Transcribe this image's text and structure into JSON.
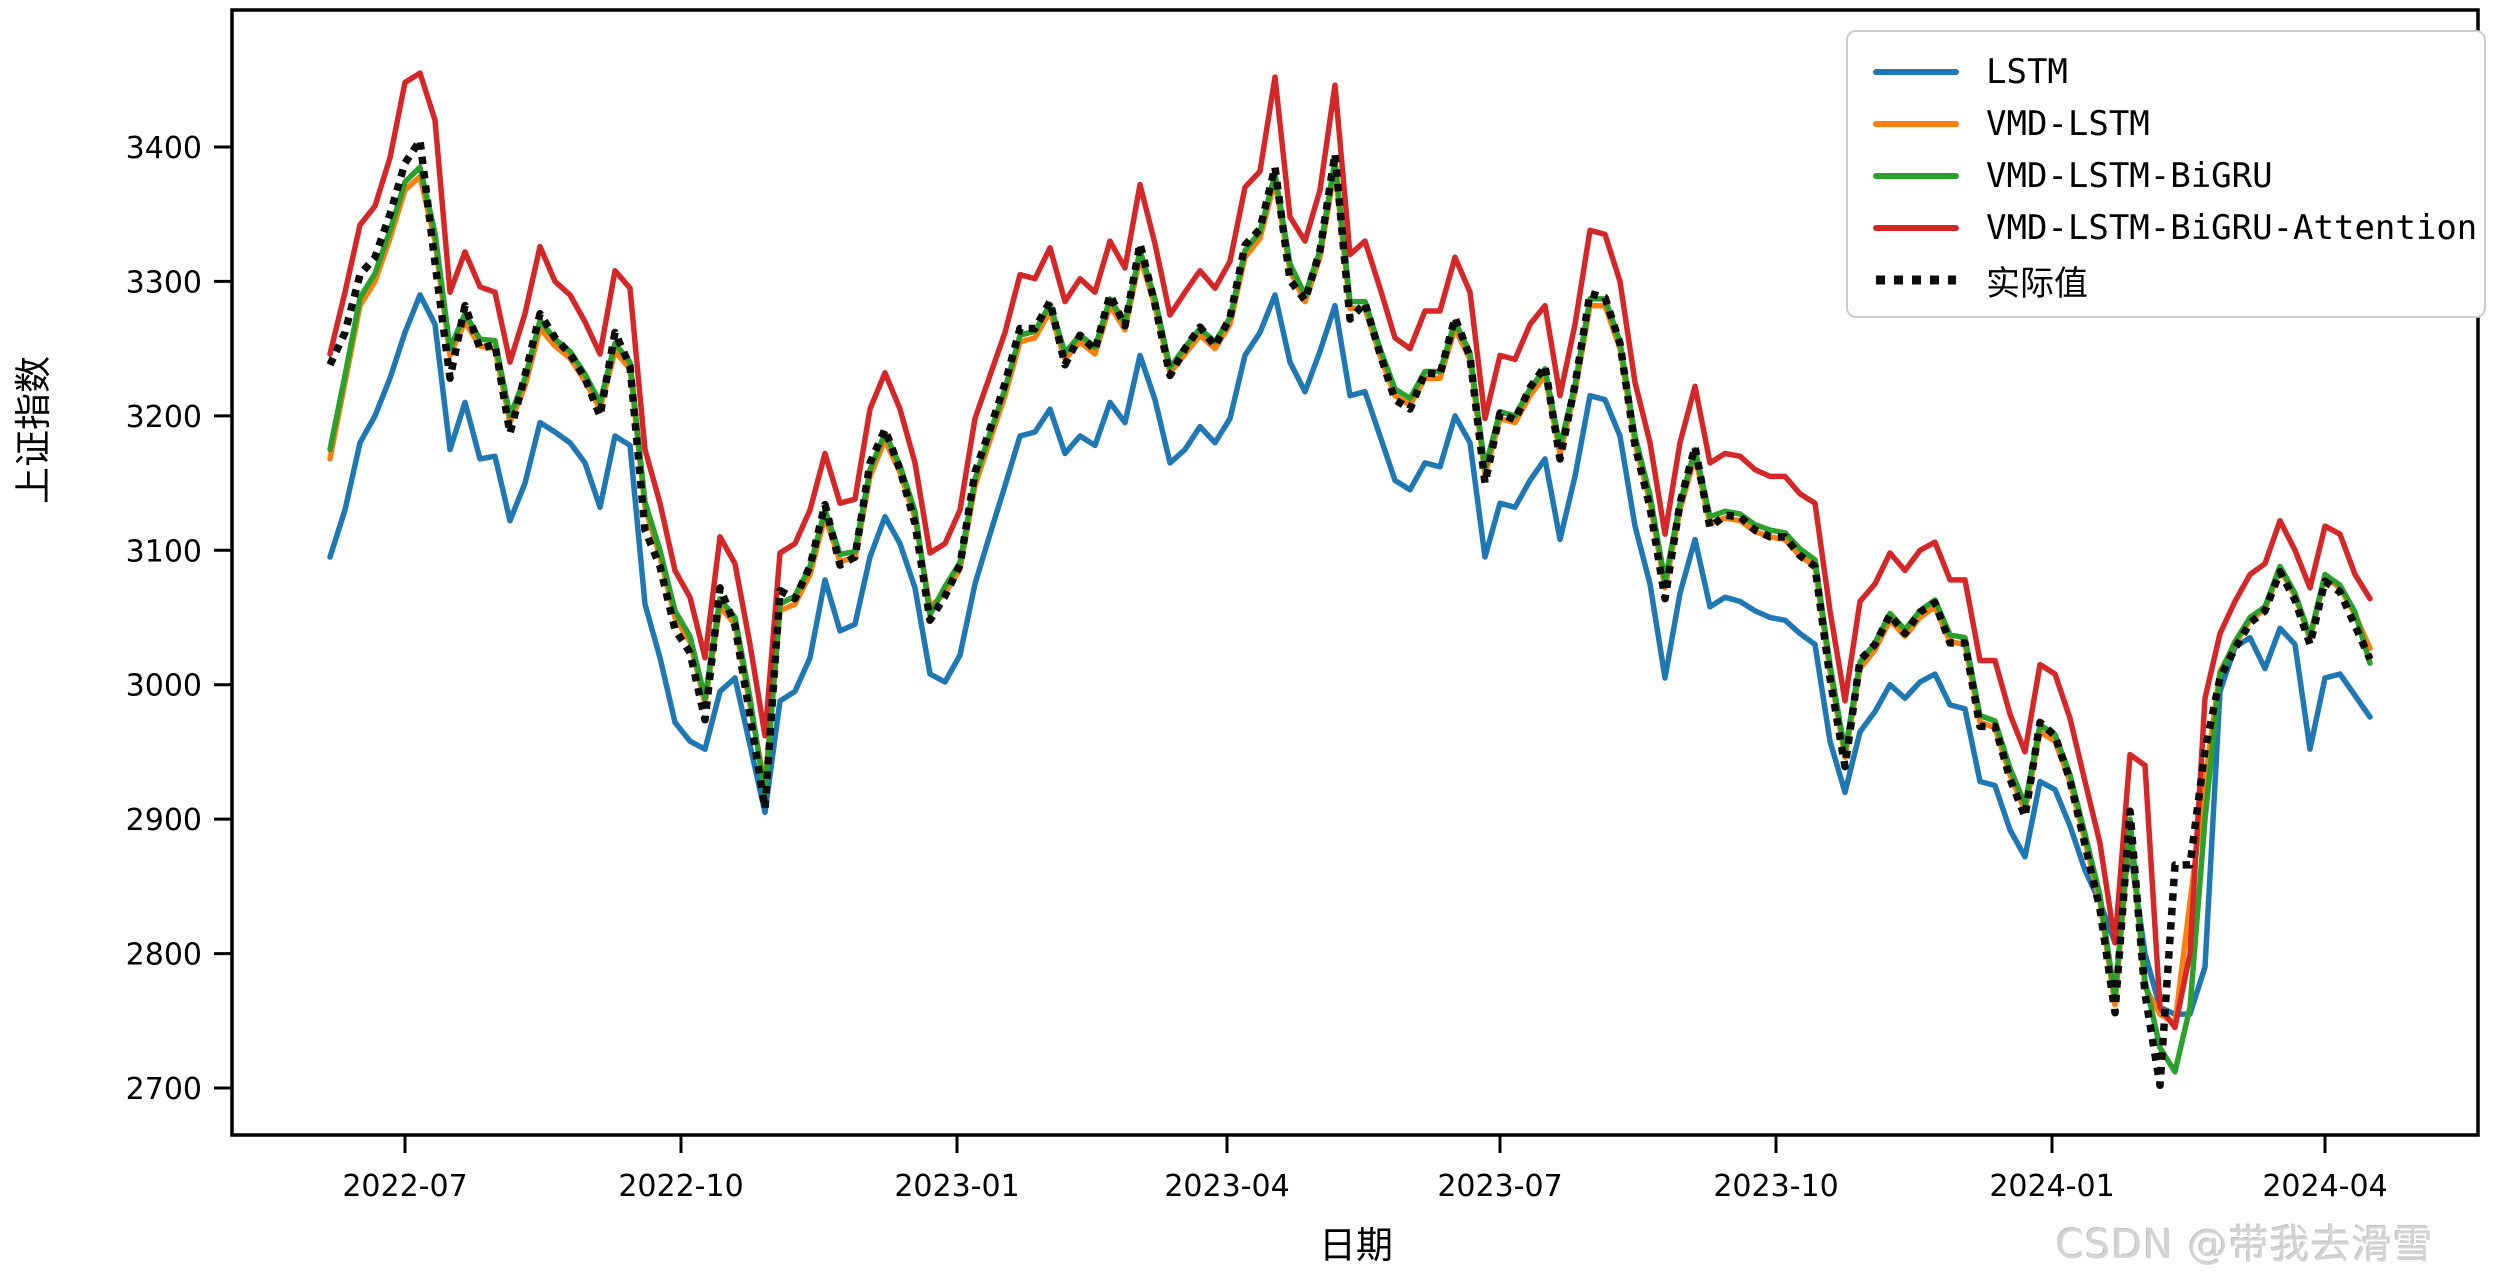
{
  "watermark": "CSDN @带我去滑雪",
  "colors": {
    "lstm_blue": "#1f77b4",
    "vmd_lstm_orange": "#ff7f0e",
    "vmd_lstm_bigru_green": "#2ca02c",
    "attention_red": "#d62728",
    "actual_black": "#0d0d0d",
    "legend_border": "#cccccc",
    "spine": "#000000"
  },
  "legend": {
    "items": [
      {
        "label": "LSTM",
        "color": "#1f77b4",
        "style": "line"
      },
      {
        "label": "VMD-LSTM",
        "color": "#ff7f0e",
        "style": "line"
      },
      {
        "label": "VMD-LSTM-BiGRU",
        "color": "#2ca02c",
        "style": "line"
      },
      {
        "label": "VMD-LSTM-BiGRU-Attention",
        "color": "#d62728",
        "style": "line"
      },
      {
        "label": "实际值",
        "color": "#0d0d0d",
        "style": "dotted"
      }
    ]
  },
  "chart_data": {
    "type": "line",
    "title": "",
    "xlabel": "日期",
    "ylabel": "上证指数",
    "grid": false,
    "legend_position": "upper right",
    "ylim": [
      2664,
      3502
    ],
    "y_ticks": [
      2700,
      2800,
      2900,
      3000,
      3100,
      3200,
      3300,
      3400
    ],
    "x_ticks": [
      {
        "pos": "2022-07-01",
        "label": "2022-07"
      },
      {
        "pos": "2022-10-01",
        "label": "2022-10"
      },
      {
        "pos": "2023-01-01",
        "label": "2023-01"
      },
      {
        "pos": "2023-04-01",
        "label": "2023-04"
      },
      {
        "pos": "2023-07-01",
        "label": "2023-07"
      },
      {
        "pos": "2023-10-01",
        "label": "2023-10"
      },
      {
        "pos": "2024-01-01",
        "label": "2024-01"
      },
      {
        "pos": "2024-04-01",
        "label": "2024-04"
      }
    ],
    "x": [
      "2022-06-06",
      "2022-06-11",
      "2022-06-16",
      "2022-06-21",
      "2022-06-26",
      "2022-07-01",
      "2022-07-06",
      "2022-07-11",
      "2022-07-16",
      "2022-07-21",
      "2022-07-26",
      "2022-07-31",
      "2022-08-05",
      "2022-08-10",
      "2022-08-15",
      "2022-08-20",
      "2022-08-25",
      "2022-08-30",
      "2022-09-04",
      "2022-09-09",
      "2022-09-14",
      "2022-09-19",
      "2022-09-24",
      "2022-09-29",
      "2022-10-04",
      "2022-10-09",
      "2022-10-14",
      "2022-10-19",
      "2022-10-24",
      "2022-10-29",
      "2022-11-03",
      "2022-11-08",
      "2022-11-13",
      "2022-11-18",
      "2022-11-23",
      "2022-11-28",
      "2022-12-03",
      "2022-12-08",
      "2022-12-13",
      "2022-12-18",
      "2022-12-23",
      "2022-12-28",
      "2023-01-02",
      "2023-01-07",
      "2023-01-12",
      "2023-01-17",
      "2023-01-22",
      "2023-01-27",
      "2023-02-01",
      "2023-02-06",
      "2023-02-11",
      "2023-02-16",
      "2023-02-21",
      "2023-02-26",
      "2023-03-03",
      "2023-03-08",
      "2023-03-13",
      "2023-03-18",
      "2023-03-23",
      "2023-03-28",
      "2023-04-02",
      "2023-04-07",
      "2023-04-12",
      "2023-04-17",
      "2023-04-22",
      "2023-04-27",
      "2023-05-02",
      "2023-05-07",
      "2023-05-12",
      "2023-05-17",
      "2023-05-22",
      "2023-05-27",
      "2023-06-01",
      "2023-06-06",
      "2023-06-11",
      "2023-06-16",
      "2023-06-21",
      "2023-06-26",
      "2023-07-01",
      "2023-07-06",
      "2023-07-11",
      "2023-07-16",
      "2023-07-21",
      "2023-07-26",
      "2023-07-31",
      "2023-08-05",
      "2023-08-10",
      "2023-08-15",
      "2023-08-20",
      "2023-08-25",
      "2023-08-30",
      "2023-09-04",
      "2023-09-09",
      "2023-09-14",
      "2023-09-19",
      "2023-09-24",
      "2023-09-29",
      "2023-10-04",
      "2023-10-09",
      "2023-10-14",
      "2023-10-19",
      "2023-10-24",
      "2023-10-29",
      "2023-11-03",
      "2023-11-08",
      "2023-11-13",
      "2023-11-18",
      "2023-11-23",
      "2023-11-28",
      "2023-12-03",
      "2023-12-08",
      "2023-12-13",
      "2023-12-18",
      "2023-12-23",
      "2023-12-28",
      "2024-01-02",
      "2024-01-07",
      "2024-01-12",
      "2024-01-17",
      "2024-01-22",
      "2024-01-27",
      "2024-02-01",
      "2024-02-06",
      "2024-02-11",
      "2024-02-16",
      "2024-02-21",
      "2024-02-26",
      "2024-03-02",
      "2024-03-07",
      "2024-03-12",
      "2024-03-17",
      "2024-03-22",
      "2024-03-27",
      "2024-04-01",
      "2024-04-06",
      "2024-04-11",
      "2024-04-16"
    ],
    "series": [
      {
        "name": "LSTM",
        "color": "#1f77b4",
        "style": "line",
        "values": [
          3095,
          3130,
          3180,
          3200,
          3228,
          3262,
          3290,
          3268,
          3175,
          3210,
          3168,
          3170,
          3122,
          3150,
          3195,
          3188,
          3180,
          3165,
          3132,
          3185,
          3178,
          3060,
          3020,
          2972,
          2958,
          2952,
          2995,
          3005,
          2955,
          2905,
          2988,
          2995,
          3020,
          3078,
          3040,
          3045,
          3095,
          3125,
          3105,
          3072,
          3008,
          3002,
          3022,
          3075,
          3112,
          3148,
          3185,
          3188,
          3205,
          3172,
          3185,
          3178,
          3210,
          3195,
          3245,
          3212,
          3165,
          3175,
          3192,
          3180,
          3198,
          3245,
          3262,
          3290,
          3240,
          3218,
          3248,
          3282,
          3215,
          3218,
          3185,
          3152,
          3145,
          3165,
          3162,
          3200,
          3180,
          3095,
          3135,
          3132,
          3152,
          3168,
          3108,
          3155,
          3215,
          3212,
          3185,
          3118,
          3075,
          3005,
          3068,
          3108,
          3058,
          3065,
          3062,
          3055,
          3050,
          3048,
          3038,
          3030,
          2958,
          2920,
          2965,
          2980,
          3000,
          2990,
          3002,
          3008,
          2985,
          2982,
          2928,
          2925,
          2892,
          2872,
          2928,
          2922,
          2895,
          2862,
          2838,
          2808,
          2878,
          2800,
          2760,
          2755,
          2755,
          2790,
          2995,
          3028,
          3035,
          3012,
          3042,
          3030,
          2952,
          3005,
          3008,
          2992,
          2976
        ]
      },
      {
        "name": "VMD-LSTM",
        "color": "#ff7f0e",
        "style": "line",
        "values": [
          3168,
          3225,
          3282,
          3300,
          3332,
          3368,
          3378,
          3330,
          3245,
          3270,
          3252,
          3250,
          3195,
          3222,
          3265,
          3252,
          3243,
          3226,
          3205,
          3248,
          3235,
          3132,
          3095,
          3050,
          3032,
          2986,
          3058,
          3045,
          2985,
          2925,
          3055,
          3060,
          3082,
          3125,
          3092,
          3094,
          3155,
          3182,
          3158,
          3124,
          3058,
          3068,
          3086,
          3148,
          3182,
          3215,
          3255,
          3258,
          3278,
          3242,
          3255,
          3246,
          3282,
          3264,
          3318,
          3282,
          3232,
          3246,
          3260,
          3250,
          3268,
          3318,
          3332,
          3375,
          3308,
          3285,
          3318,
          3385,
          3280,
          3280,
          3245,
          3215,
          3208,
          3228,
          3228,
          3265,
          3242,
          3156,
          3198,
          3195,
          3215,
          3230,
          3172,
          3218,
          3282,
          3282,
          3250,
          3180,
          3136,
          3072,
          3130,
          3170,
          3120,
          3124,
          3122,
          3114,
          3110,
          3108,
          3096,
          3088,
          3010,
          2946,
          3012,
          3026,
          3048,
          3036,
          3050,
          3058,
          3032,
          3030,
          2972,
          2968,
          2933,
          2906,
          2965,
          2958,
          2928,
          2884,
          2838,
          2762,
          2895,
          2775,
          2755,
          2748,
          2838,
          2928,
          3010,
          3030,
          3048,
          3056,
          3086,
          3066,
          3034,
          3080,
          3072,
          3052,
          3027
        ]
      },
      {
        "name": "VMD-LSTM-BiGRU",
        "color": "#2ca02c",
        "style": "line",
        "values": [
          3175,
          3230,
          3288,
          3306,
          3338,
          3374,
          3385,
          3336,
          3250,
          3276,
          3257,
          3256,
          3200,
          3228,
          3271,
          3257,
          3248,
          3231,
          3210,
          3254,
          3240,
          3136,
          3100,
          3055,
          3036,
          2990,
          3064,
          3050,
          2990,
          2918,
          3060,
          3066,
          3088,
          3130,
          3097,
          3099,
          3160,
          3187,
          3163,
          3129,
          3052,
          3073,
          3091,
          3153,
          3187,
          3220,
          3260,
          3263,
          3283,
          3247,
          3260,
          3251,
          3287,
          3269,
          3323,
          3287,
          3236,
          3251,
          3265,
          3255,
          3273,
          3323,
          3337,
          3380,
          3313,
          3290,
          3323,
          3390,
          3285,
          3285,
          3250,
          3220,
          3213,
          3233,
          3233,
          3270,
          3247,
          3161,
          3203,
          3200,
          3220,
          3235,
          3177,
          3223,
          3287,
          3287,
          3255,
          3185,
          3141,
          3077,
          3135,
          3175,
          3125,
          3129,
          3127,
          3119,
          3115,
          3113,
          3101,
          3093,
          3015,
          2950,
          3017,
          3031,
          3053,
          3041,
          3055,
          3063,
          3037,
          3035,
          2977,
          2973,
          2938,
          2911,
          2970,
          2963,
          2933,
          2889,
          2843,
          2767,
          2900,
          2780,
          2730,
          2712,
          2760,
          2900,
          3008,
          3032,
          3050,
          3058,
          3088,
          3068,
          3036,
          3082,
          3074,
          3054,
          3016
        ]
      },
      {
        "name": "VMD-LSTM-BiGRU-Attention",
        "color": "#d62728",
        "style": "line",
        "values": [
          3246,
          3292,
          3342,
          3356,
          3392,
          3448,
          3455,
          3420,
          3292,
          3322,
          3296,
          3292,
          3240,
          3276,
          3326,
          3300,
          3290,
          3270,
          3246,
          3308,
          3295,
          3175,
          3135,
          3085,
          3065,
          3020,
          3110,
          3090,
          3030,
          2962,
          3098,
          3105,
          3130,
          3172,
          3135,
          3138,
          3205,
          3232,
          3205,
          3165,
          3098,
          3105,
          3130,
          3198,
          3230,
          3262,
          3305,
          3302,
          3325,
          3285,
          3302,
          3292,
          3330,
          3310,
          3372,
          3328,
          3275,
          3292,
          3308,
          3295,
          3315,
          3370,
          3382,
          3452,
          3348,
          3330,
          3368,
          3446,
          3320,
          3330,
          3295,
          3258,
          3250,
          3278,
          3278,
          3318,
          3292,
          3198,
          3245,
          3242,
          3268,
          3282,
          3215,
          3268,
          3338,
          3335,
          3300,
          3225,
          3180,
          3112,
          3180,
          3222,
          3165,
          3172,
          3170,
          3160,
          3155,
          3155,
          3142,
          3135,
          3055,
          2988,
          3062,
          3075,
          3098,
          3085,
          3100,
          3106,
          3078,
          3078,
          3018,
          3018,
          2978,
          2950,
          3015,
          3008,
          2975,
          2928,
          2882,
          2808,
          2948,
          2940,
          2760,
          2745,
          2800,
          2990,
          3038,
          3062,
          3082,
          3090,
          3122,
          3100,
          3072,
          3118,
          3112,
          3082,
          3064
        ]
      },
      {
        "name": "实际值",
        "color": "#0d0d0d",
        "style": "dotted",
        "values": [
          3238,
          3262,
          3305,
          3318,
          3350,
          3388,
          3405,
          3314,
          3228,
          3282,
          3250,
          3253,
          3187,
          3230,
          3276,
          3258,
          3246,
          3228,
          3200,
          3262,
          3237,
          3115,
          3088,
          3041,
          3024,
          2974,
          3072,
          3044,
          2977,
          2908,
          3070,
          3064,
          3088,
          3134,
          3089,
          3095,
          3165,
          3190,
          3160,
          3120,
          3048,
          3066,
          3089,
          3158,
          3190,
          3224,
          3265,
          3265,
          3285,
          3238,
          3260,
          3249,
          3290,
          3267,
          3328,
          3283,
          3230,
          3250,
          3266,
          3252,
          3273,
          3327,
          3339,
          3385,
          3301,
          3286,
          3323,
          3395,
          3272,
          3284,
          3246,
          3212,
          3205,
          3232,
          3231,
          3273,
          3244,
          3150,
          3202,
          3197,
          3221,
          3237,
          3168,
          3223,
          3291,
          3288,
          3254,
          3178,
          3132,
          3064,
          3135,
          3177,
          3117,
          3126,
          3125,
          3115,
          3110,
          3110,
          3096,
          3088,
          3005,
          2939,
          3018,
          3030,
          3052,
          3038,
          3054,
          3061,
          3031,
          3031,
          2969,
          2969,
          2930,
          2902,
          2972,
          2962,
          2929,
          2881,
          2833,
          2756,
          2906,
          2770,
          2702,
          2866,
          2866,
          2951,
          3005,
          3027,
          3046,
          3055,
          3084,
          3063,
          3030,
          3077,
          3069,
          3044,
          3019
        ]
      }
    ]
  }
}
